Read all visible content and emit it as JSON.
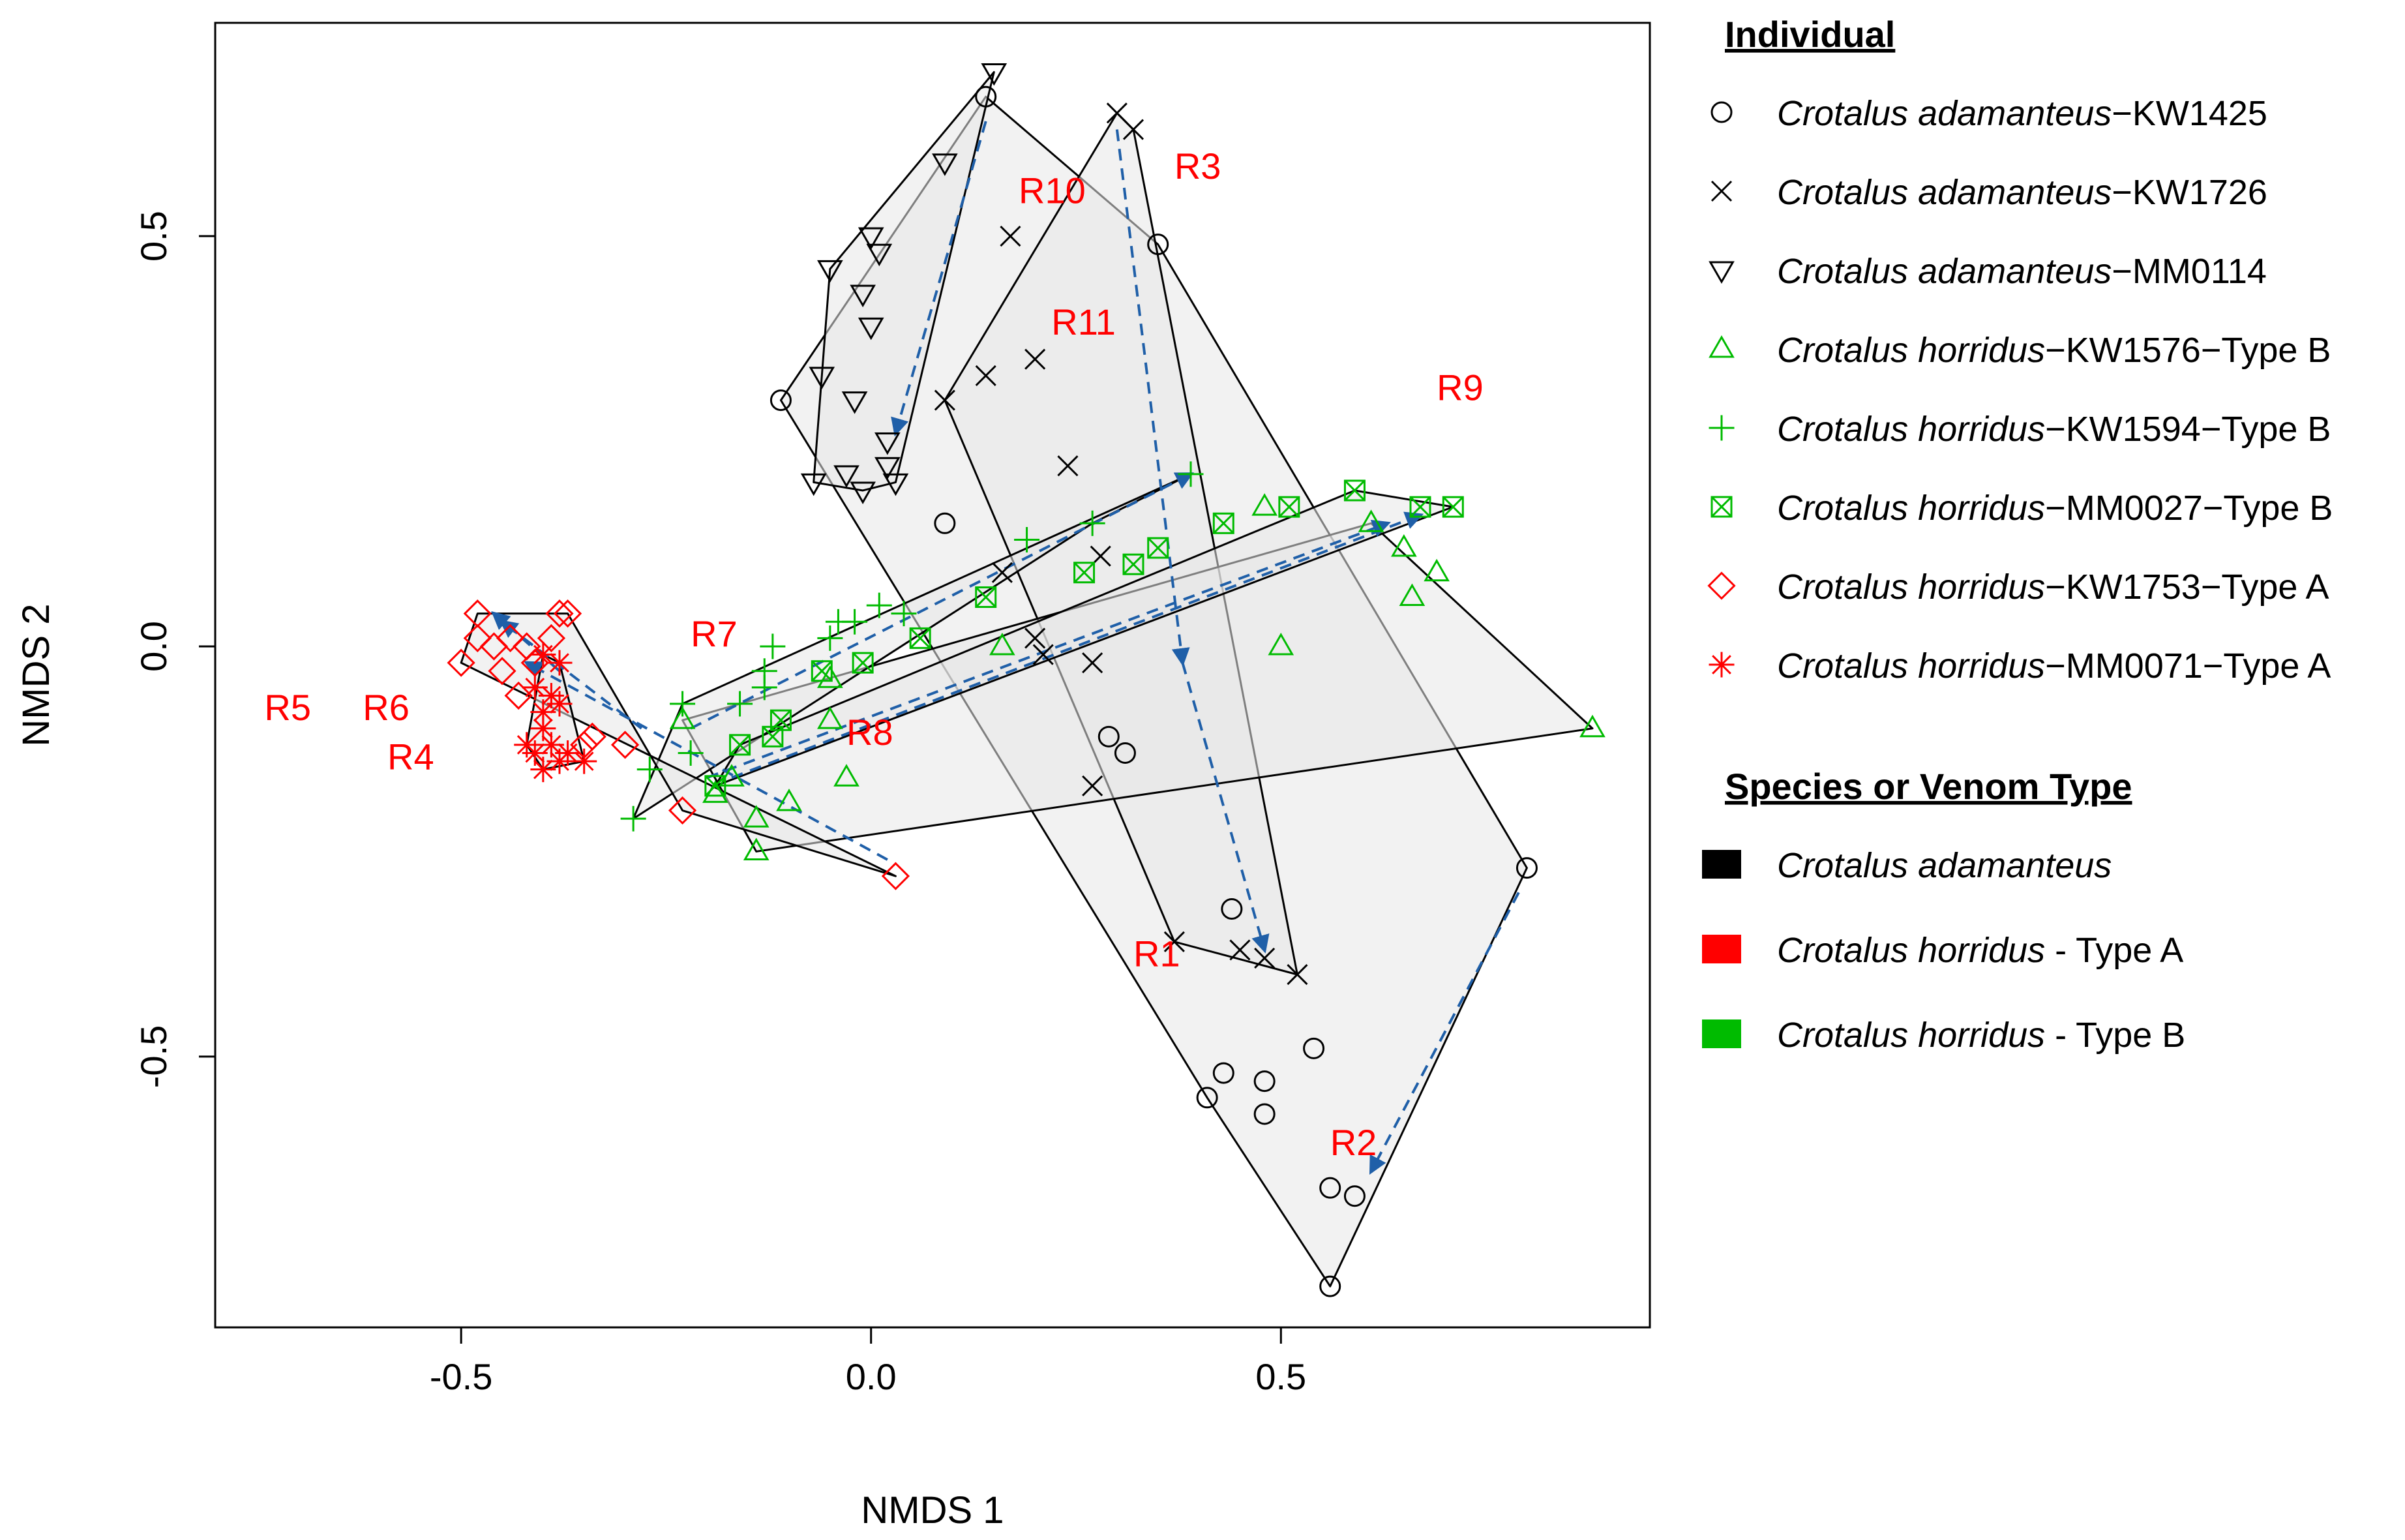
{
  "chart_data": {
    "type": "scatter",
    "title": "",
    "xlabel": "NMDS 1",
    "ylabel": "NMDS 2",
    "xlim": [
      -0.8,
      0.95
    ],
    "ylim": [
      -0.83,
      0.76
    ],
    "xticks": [
      -0.5,
      0.0,
      0.5
    ],
    "yticks": [
      -0.5,
      0.0,
      0.5
    ],
    "xtick_labels": [
      "-0.5",
      "0.0",
      "0.5"
    ],
    "ytick_labels": [
      "-0.5",
      "0.0",
      "0.5"
    ],
    "grid": false,
    "legend_placement": "right, outside plot",
    "colors": {
      "adamanteus": "#000000",
      "horridus_type_a": "#ff0000",
      "horridus_type_b": "#00bb00",
      "region_label": "#ff0000",
      "arrow": "#1f5fa8",
      "hull_fill": "#e8e8e8"
    },
    "series": [
      {
        "name_species": "Crotalus adamanteus",
        "name_id": "−KW1425",
        "marker": "circle",
        "color": "#000000",
        "points": [
          [
            0.14,
            0.67
          ],
          [
            0.35,
            0.49
          ],
          [
            -0.11,
            0.3
          ],
          [
            0.09,
            0.15
          ],
          [
            0.29,
            -0.11
          ],
          [
            0.31,
            -0.13
          ],
          [
            0.44,
            -0.32
          ],
          [
            0.8,
            -0.27
          ],
          [
            0.41,
            -0.55
          ],
          [
            0.43,
            -0.52
          ],
          [
            0.48,
            -0.53
          ],
          [
            0.48,
            -0.57
          ],
          [
            0.54,
            -0.49
          ],
          [
            0.56,
            -0.66
          ],
          [
            0.59,
            -0.67
          ],
          [
            0.56,
            -0.78
          ]
        ]
      },
      {
        "name_species": "Crotalus adamanteus",
        "name_id": "−KW1726",
        "marker": "x",
        "color": "#000000",
        "points": [
          [
            0.3,
            0.65
          ],
          [
            0.32,
            0.63
          ],
          [
            0.17,
            0.5
          ],
          [
            0.09,
            0.3
          ],
          [
            0.14,
            0.33
          ],
          [
            0.2,
            0.35
          ],
          [
            0.24,
            0.22
          ],
          [
            0.16,
            0.09
          ],
          [
            0.28,
            0.11
          ],
          [
            0.2,
            0.01
          ],
          [
            0.21,
            -0.01
          ],
          [
            0.27,
            -0.02
          ],
          [
            0.27,
            -0.17
          ],
          [
            0.37,
            -0.36
          ],
          [
            0.45,
            -0.37
          ],
          [
            0.48,
            -0.38
          ],
          [
            0.52,
            -0.4
          ]
        ]
      },
      {
        "name_species": "Crotalus adamanteus",
        "name_id": "−MM0114",
        "marker": "triangle-down",
        "color": "#000000",
        "points": [
          [
            0.15,
            0.7
          ],
          [
            0.09,
            0.59
          ],
          [
            -0.05,
            0.46
          ],
          [
            0.0,
            0.5
          ],
          [
            0.01,
            0.48
          ],
          [
            -0.01,
            0.43
          ],
          [
            0.0,
            0.39
          ],
          [
            -0.06,
            0.33
          ],
          [
            -0.02,
            0.3
          ],
          [
            0.02,
            0.25
          ],
          [
            0.02,
            0.22
          ],
          [
            -0.03,
            0.21
          ],
          [
            -0.01,
            0.19
          ],
          [
            0.03,
            0.2
          ],
          [
            -0.07,
            0.2
          ]
        ]
      },
      {
        "name_species": "Crotalus horridus",
        "name_id": "−KW1576−Type B",
        "marker": "triangle-up",
        "color": "#00bb00",
        "points": [
          [
            0.88,
            -0.1
          ],
          [
            0.5,
            0.0
          ],
          [
            0.66,
            0.06
          ],
          [
            0.69,
            0.09
          ],
          [
            0.65,
            0.12
          ],
          [
            0.61,
            0.15
          ],
          [
            0.48,
            0.17
          ],
          [
            0.16,
            0.0
          ],
          [
            -0.05,
            -0.04
          ],
          [
            -0.05,
            -0.09
          ],
          [
            -0.03,
            -0.16
          ],
          [
            -0.1,
            -0.19
          ],
          [
            -0.14,
            -0.21
          ],
          [
            -0.14,
            -0.25
          ],
          [
            -0.17,
            -0.16
          ],
          [
            -0.19,
            -0.18
          ],
          [
            -0.23,
            -0.09
          ]
        ]
      },
      {
        "name_species": "Crotalus horridus",
        "name_id": "−KW1594−Type B",
        "marker": "plus",
        "color": "#00bb00",
        "points": [
          [
            0.39,
            0.21
          ],
          [
            0.27,
            0.15
          ],
          [
            0.19,
            0.13
          ],
          [
            0.04,
            0.04
          ],
          [
            0.01,
            0.05
          ],
          [
            -0.02,
            0.03
          ],
          [
            -0.04,
            0.03
          ],
          [
            -0.05,
            0.01
          ],
          [
            -0.12,
            0.0
          ],
          [
            -0.13,
            -0.03
          ],
          [
            -0.13,
            -0.05
          ],
          [
            -0.16,
            -0.07
          ],
          [
            -0.22,
            -0.13
          ],
          [
            -0.23,
            -0.07
          ],
          [
            -0.27,
            -0.15
          ],
          [
            -0.29,
            -0.21
          ]
        ]
      },
      {
        "name_species": "Crotalus horridus",
        "name_id": "−MM0027−Type B",
        "marker": "square-x",
        "color": "#00bb00",
        "points": [
          [
            0.59,
            0.19
          ],
          [
            0.67,
            0.17
          ],
          [
            0.71,
            0.17
          ],
          [
            0.51,
            0.17
          ],
          [
            0.43,
            0.15
          ],
          [
            0.35,
            0.12
          ],
          [
            0.32,
            0.1
          ],
          [
            0.26,
            0.09
          ],
          [
            0.14,
            0.06
          ],
          [
            0.06,
            0.01
          ],
          [
            -0.01,
            -0.02
          ],
          [
            -0.06,
            -0.03
          ],
          [
            -0.11,
            -0.09
          ],
          [
            -0.12,
            -0.11
          ],
          [
            -0.16,
            -0.12
          ],
          [
            -0.19,
            -0.17
          ]
        ]
      },
      {
        "name_species": "Crotalus horridus",
        "name_id": "−KW1753−Type A",
        "marker": "diamond",
        "color": "#ff0000",
        "points": [
          [
            -0.48,
            0.04
          ],
          [
            -0.38,
            0.04
          ],
          [
            -0.37,
            0.04
          ],
          [
            -0.5,
            -0.02
          ],
          [
            -0.48,
            0.01
          ],
          [
            -0.46,
            0.0
          ],
          [
            -0.44,
            0.01
          ],
          [
            -0.42,
            0.0
          ],
          [
            -0.41,
            -0.02
          ],
          [
            -0.39,
            0.01
          ],
          [
            -0.45,
            -0.03
          ],
          [
            -0.43,
            -0.06
          ],
          [
            -0.34,
            -0.11
          ],
          [
            -0.35,
            -0.12
          ],
          [
            -0.3,
            -0.12
          ],
          [
            -0.23,
            -0.2
          ],
          [
            0.03,
            -0.28
          ]
        ]
      },
      {
        "name_species": "Crotalus horridus",
        "name_id": "−MM0071−Type A",
        "marker": "asterisk",
        "color": "#ff0000",
        "points": [
          [
            -0.4,
            -0.01
          ],
          [
            -0.38,
            -0.02
          ],
          [
            -0.41,
            -0.05
          ],
          [
            -0.39,
            -0.06
          ],
          [
            -0.4,
            -0.08
          ],
          [
            -0.38,
            -0.07
          ],
          [
            -0.4,
            -0.1
          ],
          [
            -0.41,
            -0.13
          ],
          [
            -0.39,
            -0.12
          ],
          [
            -0.37,
            -0.13
          ],
          [
            -0.38,
            -0.14
          ],
          [
            -0.35,
            -0.14
          ],
          [
            -0.4,
            -0.15
          ],
          [
            -0.42,
            -0.12
          ]
        ]
      }
    ],
    "annotations": [
      {
        "text": "R1",
        "x": 0.32,
        "y": -0.39
      },
      {
        "text": "R2",
        "x": 0.56,
        "y": -0.62
      },
      {
        "text": "R3",
        "x": 0.37,
        "y": 0.57
      },
      {
        "text": "R4",
        "x": -0.59,
        "y": -0.15
      },
      {
        "text": "R5",
        "x": -0.74,
        "y": -0.09
      },
      {
        "text": "R6",
        "x": -0.62,
        "y": -0.09
      },
      {
        "text": "R7",
        "x": -0.22,
        "y": 0.0
      },
      {
        "text": "R8",
        "x": -0.03,
        "y": -0.12
      },
      {
        "text": "R9",
        "x": 0.69,
        "y": 0.3
      },
      {
        "text": "R10",
        "x": 0.18,
        "y": 0.54
      },
      {
        "text": "R11",
        "x": 0.22,
        "y": 0.38
      }
    ],
    "arrows": [
      [
        [
          0.14,
          0.64
        ],
        [
          0.03,
          0.26
        ]
      ],
      [
        [
          0.3,
          0.63
        ],
        [
          0.38,
          -0.02
        ]
      ],
      [
        [
          0.38,
          -0.02
        ],
        [
          0.48,
          -0.37
        ]
      ],
      [
        [
          0.79,
          -0.3
        ],
        [
          0.61,
          -0.64
        ]
      ],
      [
        [
          -0.38,
          -0.03
        ],
        [
          -0.46,
          0.04
        ]
      ],
      [
        [
          -0.28,
          -0.1
        ],
        [
          -0.45,
          0.03
        ]
      ],
      [
        [
          -0.22,
          -0.1
        ],
        [
          0.39,
          0.21
        ]
      ],
      [
        [
          -0.17,
          -0.16
        ],
        [
          0.67,
          0.16
        ]
      ],
      [
        [
          -0.2,
          -0.16
        ],
        [
          0.63,
          0.15
        ]
      ],
      [
        [
          0.02,
          -0.26
        ],
        [
          -0.42,
          -0.02
        ]
      ]
    ],
    "hulls": [
      [
        [
          0.14,
          0.67
        ],
        [
          0.35,
          0.49
        ],
        [
          0.8,
          -0.27
        ],
        [
          0.56,
          -0.78
        ],
        [
          0.41,
          -0.55
        ],
        [
          -0.11,
          0.3
        ]
      ],
      [
        [
          0.3,
          0.65
        ],
        [
          0.32,
          0.63
        ],
        [
          0.52,
          -0.4
        ],
        [
          0.37,
          -0.36
        ],
        [
          0.09,
          0.3
        ]
      ],
      [
        [
          0.15,
          0.7
        ],
        [
          0.03,
          0.2
        ],
        [
          -0.01,
          0.19
        ],
        [
          -0.07,
          0.2
        ],
        [
          -0.06,
          0.33
        ],
        [
          -0.05,
          0.46
        ]
      ],
      [
        [
          -0.23,
          -0.09
        ],
        [
          0.61,
          0.15
        ],
        [
          0.88,
          -0.1
        ],
        [
          -0.14,
          -0.25
        ]
      ],
      [
        [
          -0.29,
          -0.21
        ],
        [
          -0.23,
          -0.07
        ],
        [
          0.39,
          0.21
        ],
        [
          0.27,
          0.15
        ]
      ],
      [
        [
          -0.19,
          -0.17
        ],
        [
          -0.16,
          -0.12
        ],
        [
          0.59,
          0.19
        ],
        [
          0.71,
          0.17
        ]
      ],
      [
        [
          -0.48,
          0.04
        ],
        [
          -0.37,
          0.04
        ],
        [
          -0.23,
          -0.2
        ],
        [
          0.03,
          -0.28
        ],
        [
          -0.5,
          -0.02
        ]
      ],
      [
        [
          -0.4,
          -0.01
        ],
        [
          -0.38,
          -0.02
        ],
        [
          -0.35,
          -0.14
        ],
        [
          -0.4,
          -0.15
        ],
        [
          -0.42,
          -0.12
        ]
      ]
    ],
    "legend": {
      "title_individual": "Individual",
      "title_species": "Species or Venom Type",
      "species_entries": [
        {
          "species": "Crotalus adamanteus",
          "suffix": "",
          "color": "#000000"
        },
        {
          "species": "Crotalus horridus",
          "suffix": " - Type A",
          "color": "#ff0000"
        },
        {
          "species": "Crotalus horridus",
          "suffix": " - Type B",
          "color": "#00bb00"
        }
      ]
    }
  }
}
